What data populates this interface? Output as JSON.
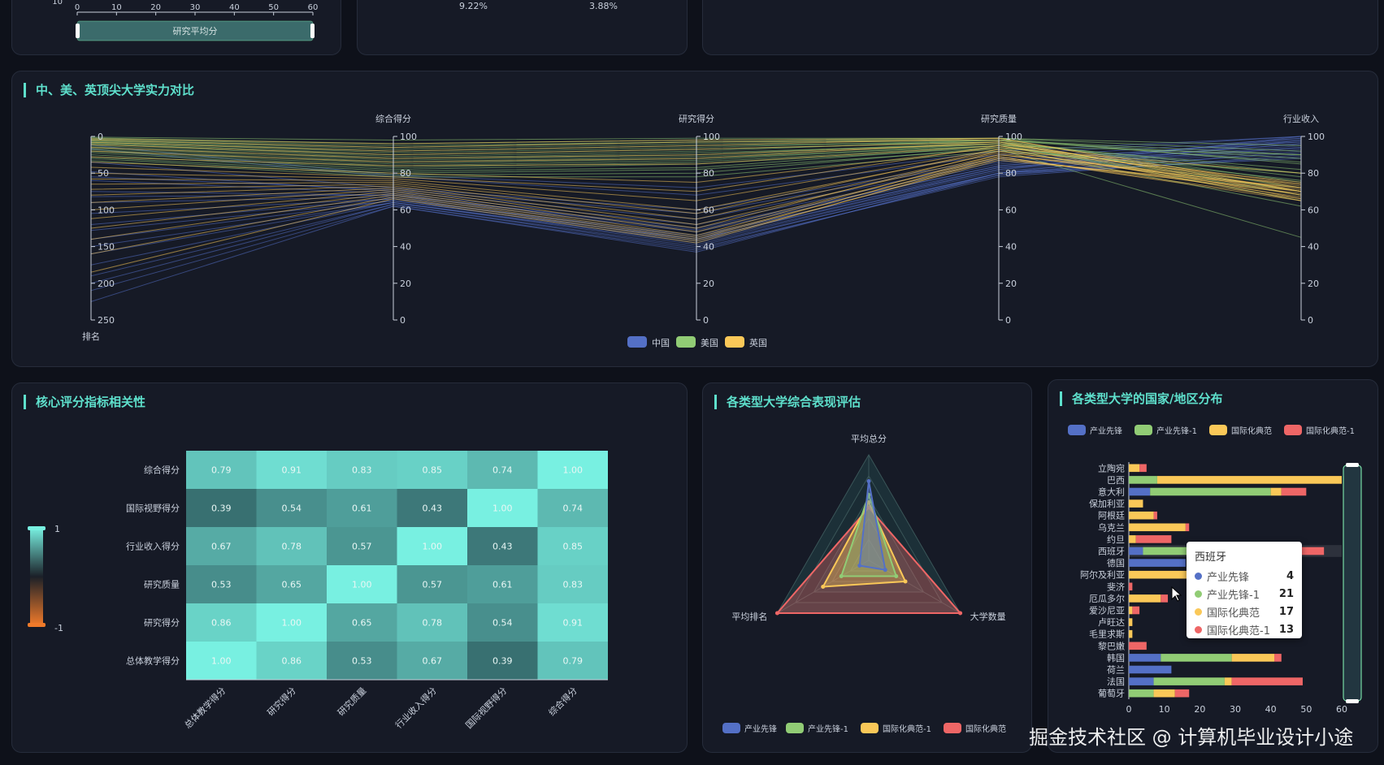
{
  "top_fragments": {
    "slider_label": "研究平均分",
    "axis_ticks": [
      "10",
      "0",
      "10",
      "20",
      "30",
      "40",
      "50",
      "60"
    ],
    "pie_label_left": "9.22%",
    "pie_label_right": "3.88%"
  },
  "colors": {
    "china": "#5470c6",
    "usa": "#91cc75",
    "uk": "#fac858",
    "red": "#ee6666",
    "accent": "#5ee0cc"
  },
  "parallel": {
    "title": "中、美、英顶尖大学实力对比",
    "chart_data": {
      "type": "parallel",
      "axes": [
        {
          "name": "排名",
          "min": 0,
          "max": 250,
          "inverse": true,
          "ticks": [
            "0",
            "50",
            "100",
            "150",
            "200",
            "250"
          ]
        },
        {
          "name": "综合得分",
          "min": 0,
          "max": 100,
          "ticks": [
            "0",
            "20",
            "40",
            "60",
            "80",
            "100"
          ]
        },
        {
          "name": "研究得分",
          "min": 0,
          "max": 100,
          "ticks": [
            "0",
            "20",
            "40",
            "60",
            "80",
            "100"
          ]
        },
        {
          "name": "研究质量",
          "min": 0,
          "max": 100,
          "ticks": [
            "0",
            "20",
            "40",
            "60",
            "80",
            "100"
          ]
        },
        {
          "name": "行业收入",
          "min": 0,
          "max": 100,
          "ticks": [
            "0",
            "20",
            "40",
            "60",
            "80",
            "100"
          ]
        }
      ],
      "series": [
        {
          "name": "中国",
          "color": "#5470c6",
          "lines": [
            [
              12,
              79,
              72,
              92,
              100
            ],
            [
              17,
              78,
              68,
              90,
              100
            ],
            [
              35,
              72,
              60,
              88,
              99
            ],
            [
              48,
              70,
              55,
              86,
              98
            ],
            [
              60,
              69,
              52,
              85,
              97
            ],
            [
              75,
              68,
              50,
              84,
              96
            ],
            [
              90,
              67,
              48,
              83,
              96
            ],
            [
              105,
              66,
              46,
              82,
              95
            ],
            [
              120,
              66,
              45,
              83,
              94
            ],
            [
              140,
              65,
              44,
              81,
              94
            ],
            [
              160,
              64,
              42,
              80,
              93
            ],
            [
              175,
              64,
              41,
              79,
              92
            ],
            [
              190,
              63,
              40,
              80,
              91
            ],
            [
              200,
              63,
              39,
              78,
              90
            ],
            [
              210,
              62,
              38,
              79,
              89
            ],
            [
              225,
              62,
              37,
              80,
              88
            ],
            [
              55,
              71,
              58,
              87,
              97
            ],
            [
              82,
              68,
              49,
              84,
              99
            ],
            [
              128,
              65,
              44,
              82,
              100
            ],
            [
              150,
              64,
              43,
              80,
              98
            ]
          ]
        },
        {
          "name": "美国",
          "color": "#91cc75",
          "lines": [
            [
              1,
              98,
              99,
              99,
              95
            ],
            [
              2,
              96,
              98,
              99,
              92
            ],
            [
              3,
              95,
              97,
              98,
              90
            ],
            [
              4,
              94,
              97,
              99,
              85
            ],
            [
              5,
              93,
              96,
              98,
              88
            ],
            [
              6,
              92,
              95,
              97,
              80
            ],
            [
              7,
              91,
              94,
              98,
              75
            ],
            [
              8,
              90,
              93,
              97,
              70
            ],
            [
              9,
              89,
              92,
              98,
              86
            ],
            [
              10,
              88,
              91,
              96,
              82
            ],
            [
              12,
              87,
              90,
              97,
              78
            ],
            [
              14,
              86,
              89,
              96,
              72
            ],
            [
              16,
              85,
              88,
              95,
              68
            ],
            [
              18,
              84,
              87,
              96,
              65
            ],
            [
              20,
              83,
              86,
              95,
              90
            ],
            [
              22,
              82,
              85,
              94,
              62
            ],
            [
              25,
              81,
              83,
              95,
              70
            ],
            [
              28,
              80,
              82,
              93,
              45
            ],
            [
              30,
              79,
              80,
              94,
              76
            ],
            [
              33,
              78,
              78,
              92,
              80
            ]
          ]
        },
        {
          "name": "英国",
          "color": "#fac858",
          "lines": [
            [
              3,
              96,
              98,
              99,
              72
            ],
            [
              5,
              94,
              97,
              98,
              68
            ],
            [
              8,
              92,
              95,
              99,
              70
            ],
            [
              11,
              90,
              93,
              97,
              66
            ],
            [
              15,
              88,
              90,
              96,
              74
            ],
            [
              20,
              86,
              88,
              97,
              70
            ],
            [
              28,
              84,
              85,
              95,
              65
            ],
            [
              35,
              80,
              75,
              94,
              80
            ],
            [
              42,
              78,
              70,
              95,
              73
            ],
            [
              50,
              77,
              65,
              93,
              68
            ],
            [
              58,
              76,
              60,
              92,
              71
            ],
            [
              65,
              75,
              58,
              93,
              75
            ],
            [
              72,
              74,
              55,
              91,
              67
            ],
            [
              80,
              73,
              52,
              90,
              72
            ],
            [
              90,
              72,
              50,
              92,
              70
            ],
            [
              100,
              71,
              48,
              89,
              66
            ],
            [
              112,
              70,
              46,
              90,
              74
            ],
            [
              125,
              69,
              45,
              88,
              69
            ],
            [
              140,
              68,
              44,
              89,
              65
            ],
            [
              160,
              67,
              43,
              87,
              72
            ],
            [
              185,
              66,
              42,
              88,
              70
            ]
          ]
        }
      ]
    }
  },
  "heatmap": {
    "title": "核心评分指标相关性",
    "visualmap_max": "1",
    "visualmap_min": "-1",
    "chart_data": {
      "type": "heatmap",
      "x_categories": [
        "总体教学得分",
        "研究得分",
        "研究质量",
        "行业收入得分",
        "国际视野得分",
        "综合得分"
      ],
      "y_categories": [
        "综合得分",
        "国际视野得分",
        "行业收入得分",
        "研究质量",
        "研究得分",
        "总体教学得分"
      ],
      "values": [
        [
          0.79,
          0.91,
          0.83,
          0.85,
          0.74,
          1.0
        ],
        [
          0.39,
          0.54,
          0.61,
          0.43,
          1.0,
          0.74
        ],
        [
          0.67,
          0.78,
          0.57,
          1.0,
          0.43,
          0.85
        ],
        [
          0.53,
          0.65,
          1.0,
          0.57,
          0.61,
          0.83
        ],
        [
          0.86,
          1.0,
          0.65,
          0.78,
          0.54,
          0.91
        ],
        [
          1.0,
          0.86,
          0.53,
          0.67,
          0.39,
          0.79
        ]
      ],
      "range": [
        -1,
        1
      ]
    }
  },
  "radar": {
    "title": "各类型大学综合表现评估",
    "chart_data": {
      "type": "radar",
      "indicators": [
        "平均总分",
        "大学数量",
        "平均排名"
      ],
      "series": [
        {
          "name": "产业先锋",
          "color": "#5470c6",
          "values": [
            0.75,
            0.18,
            0.1
          ]
        },
        {
          "name": "产业先锋-1",
          "color": "#91cc75",
          "values": [
            0.62,
            0.3,
            0.3
          ]
        },
        {
          "name": "国际化典范-1",
          "color": "#fac858",
          "values": [
            0.55,
            0.4,
            0.5
          ]
        },
        {
          "name": "国际化典范",
          "color": "#ee6666",
          "values": [
            0.5,
            1.0,
            1.0
          ]
        }
      ]
    },
    "legend": [
      "产业先锋",
      "产业先锋-1",
      "国际化典范-1",
      "国际化典范"
    ]
  },
  "bar": {
    "title": "各类型大学的国家/地区分布",
    "legend": [
      "产业先锋",
      "产业先锋-1",
      "国际化典范",
      "国际化典范-1"
    ],
    "chart_data": {
      "type": "bar",
      "stacked": true,
      "orientation": "horizontal",
      "categories": [
        "立陶宛",
        "巴西",
        "意大利",
        "保加利亚",
        "阿根廷",
        "乌克兰",
        "约旦",
        "西班牙",
        "德国",
        "阿尔及利亚",
        "斐济",
        "厄瓜多尔",
        "爱沙尼亚",
        "卢旺达",
        "毛里求斯",
        "黎巴嫩",
        "韩国",
        "荷兰",
        "法国",
        "葡萄牙"
      ],
      "series": [
        {
          "name": "产业先锋",
          "color": "#5470c6",
          "values": [
            0,
            0,
            6,
            0,
            0,
            0,
            0,
            4,
            16,
            0,
            0,
            0,
            0,
            0,
            0,
            0,
            9,
            12,
            7,
            0
          ]
        },
        {
          "name": "产业先锋-1",
          "color": "#91cc75",
          "values": [
            0,
            8,
            34,
            0,
            0,
            0,
            0,
            21,
            0,
            0,
            0,
            0,
            0,
            0,
            0,
            0,
            20,
            0,
            20,
            7
          ]
        },
        {
          "name": "国际化典范",
          "color": "#fac858",
          "values": [
            3,
            52,
            3,
            4,
            7,
            16,
            2,
            17,
            0,
            18,
            0,
            9,
            1,
            1,
            1,
            0,
            12,
            0,
            2,
            6
          ]
        },
        {
          "name": "国际化典范-1",
          "color": "#ee6666",
          "values": [
            2,
            0,
            7,
            0,
            1,
            1,
            10,
            13,
            0,
            0,
            1,
            2,
            2,
            0,
            0,
            5,
            2,
            0,
            20,
            4
          ]
        }
      ],
      "x_ticks": [
        "0",
        "10",
        "20",
        "30",
        "40",
        "50",
        "60"
      ],
      "xlim": [
        0,
        60
      ]
    },
    "tooltip": {
      "title": "西班牙",
      "rows": [
        {
          "name": "产业先锋",
          "value": "4",
          "color": "#5470c6"
        },
        {
          "name": "产业先锋-1",
          "value": "21",
          "color": "#91cc75"
        },
        {
          "name": "国际化典范",
          "value": "17",
          "color": "#fac858"
        },
        {
          "name": "国际化典范-1",
          "value": "13",
          "color": "#ee6666"
        }
      ]
    }
  },
  "watermark": "掘金技术社区 @ 计算机毕业设计小途"
}
